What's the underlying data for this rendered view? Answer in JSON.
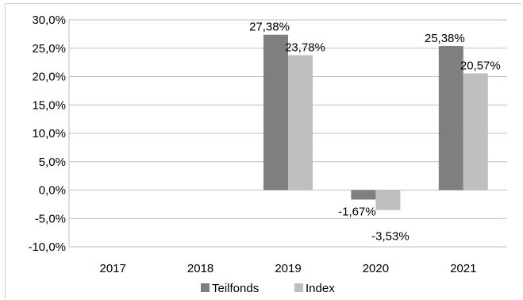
{
  "chart_data": {
    "type": "bar",
    "categories": [
      "2017",
      "2018",
      "2019",
      "2020",
      "2021"
    ],
    "series": [
      {
        "name": "Teilfonds",
        "values": [
          null,
          null,
          27.38,
          -1.67,
          25.38
        ],
        "labels": [
          "",
          "",
          "27,38%",
          "-1,67%",
          "25,38%"
        ],
        "color": "#7f7f7f"
      },
      {
        "name": "Index",
        "values": [
          null,
          null,
          23.78,
          -3.53,
          20.57
        ],
        "labels": [
          "",
          "",
          "23,78%",
          "-3,53%",
          "20,57%"
        ],
        "color": "#bfbfbf"
      }
    ],
    "y_ticks": [
      {
        "value": 30,
        "label": "30,0%"
      },
      {
        "value": 25,
        "label": "25,0%"
      },
      {
        "value": 20,
        "label": "20,0%"
      },
      {
        "value": 15,
        "label": "15,0%"
      },
      {
        "value": 10,
        "label": "10,0%"
      },
      {
        "value": 5,
        "label": "5,0%"
      },
      {
        "value": 0,
        "label": "0,0%"
      },
      {
        "value": -5,
        "label": "-5,0%"
      },
      {
        "value": -10,
        "label": "-10,0%"
      }
    ],
    "ylim": [
      -10,
      30
    ],
    "grid": true,
    "legend": "bottom",
    "title": "",
    "xlabel": "",
    "ylabel": ""
  }
}
